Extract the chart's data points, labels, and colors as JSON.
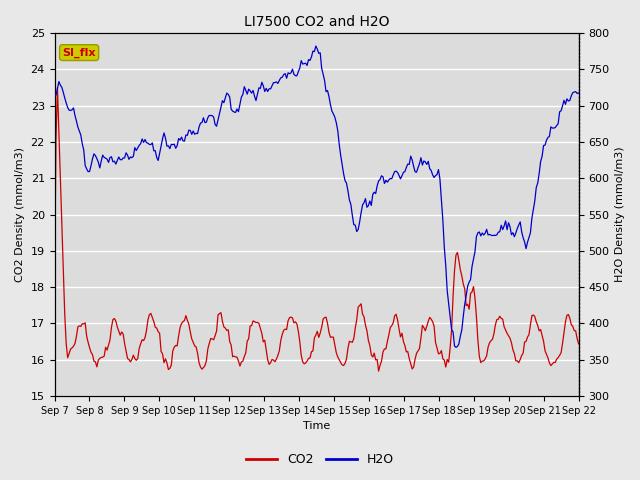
{
  "title": "LI7500 CO2 and H2O",
  "xlabel": "Time",
  "ylabel_left": "CO2 Density (mmol/m3)",
  "ylabel_right": "H2O Density (mmol/m3)",
  "ylim_left": [
    15.0,
    25.0
  ],
  "ylim_right": [
    300,
    800
  ],
  "co2_color": "#cc0000",
  "h2o_color": "#0000cc",
  "bg_color": "#e8e8e8",
  "plot_bg_color": "#dcdcdc",
  "annotation_text": "SI_flx",
  "annotation_bg": "#cccc00",
  "annotation_fg": "#cc0000",
  "x_tick_labels": [
    "Sep 7",
    "Sep 8",
    "Sep 9",
    "Sep 10",
    "Sep 11",
    "Sep 12",
    "Sep 13",
    "Sep 14",
    "Sep 15",
    "Sep 16",
    "Sep 17",
    "Sep 18",
    "Sep 19",
    "Sep 20",
    "Sep 21",
    "Sep 22"
  ],
  "legend_co2": "CO2",
  "legend_h2o": "H2O"
}
